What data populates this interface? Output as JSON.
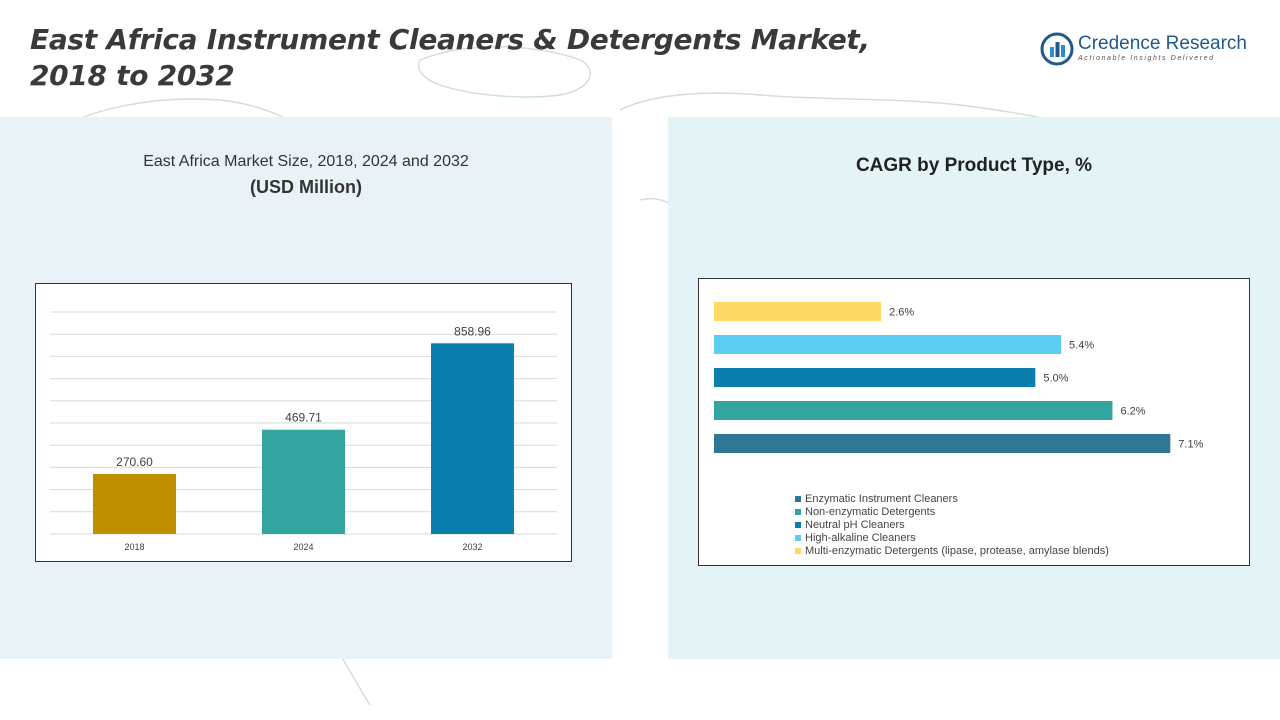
{
  "header": {
    "title_line1": "East Africa Instrument Cleaners & Detergents Market,",
    "title_line2": "2018 to 2032",
    "logo_name": "Credence Research",
    "logo_tagline": "Actionable Insights Delivered"
  },
  "chart_data": [
    {
      "type": "bar",
      "title": "East Africa Market Size, 2018, 2024 and 2032",
      "subtitle": "(USD Million)",
      "categories": [
        "2018",
        "2024",
        "2032"
      ],
      "values": [
        270.6,
        469.71,
        858.96
      ],
      "value_labels": [
        "270.60",
        "469.71",
        "858.96"
      ],
      "colors": [
        "#bf8f00",
        "#33a3a0",
        "#0a7fae"
      ],
      "ylim": [
        0,
        1000
      ],
      "grid": true
    },
    {
      "type": "bar",
      "orientation": "horizontal",
      "title": "CAGR by Product Type, %",
      "categories": [
        "Multi-enzymatic Detergents (lipase, protease, amylase blends)",
        "High-alkaline Cleaners",
        "Neutral pH Cleaners",
        "Non-enzymatic Detergents",
        "Enzymatic Instrument Cleaners"
      ],
      "values": [
        2.6,
        5.4,
        5.0,
        6.2,
        7.1
      ],
      "value_labels": [
        "2.6%",
        "5.4%",
        "5.0%",
        "6.2%",
        "7.1%"
      ],
      "colors": [
        "#ffd966",
        "#5bcdf3",
        "#0a7fae",
        "#33a3a0",
        "#2e7896"
      ],
      "xlim": [
        0,
        7.5
      ],
      "legend": [
        {
          "label": "Enzymatic Instrument Cleaners",
          "color": "#2e7896"
        },
        {
          "label": "Non-enzymatic Detergents",
          "color": "#33a3a0"
        },
        {
          "label": "Neutral pH Cleaners",
          "color": "#0a7fae"
        },
        {
          "label": "High-alkaline Cleaners",
          "color": "#5bcdf3"
        },
        {
          "label": "Multi-enzymatic Detergents (lipase, protease, amylase blends)",
          "color": "#ffd966"
        }
      ],
      "legend_position": "bottom"
    }
  ]
}
